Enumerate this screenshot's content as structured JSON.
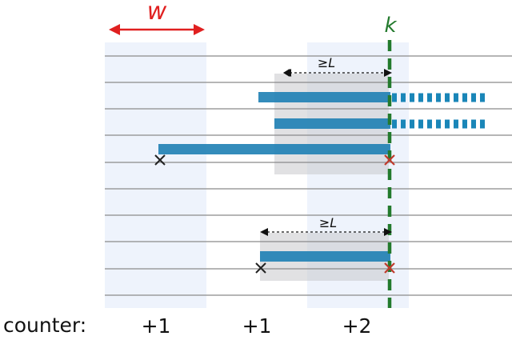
{
  "labels": {
    "window_width": "w",
    "position": "k",
    "min_length_top": "≥L",
    "min_length_bottom": "≥L",
    "counter_label": "counter:",
    "counter_values": [
      "+1",
      "+1",
      "+2"
    ]
  },
  "colors": {
    "window_band": "#eef3fc",
    "overlap_box": "#d2d2d6",
    "grid_line": "#8a8a8a",
    "segment": "#1e7fb4",
    "dotted_extension": "#1a86b8",
    "k_line": "#237a2d",
    "w_arrow": "#e02020",
    "end_marker_red": "#c0392b",
    "start_marker": "#222222"
  }
}
